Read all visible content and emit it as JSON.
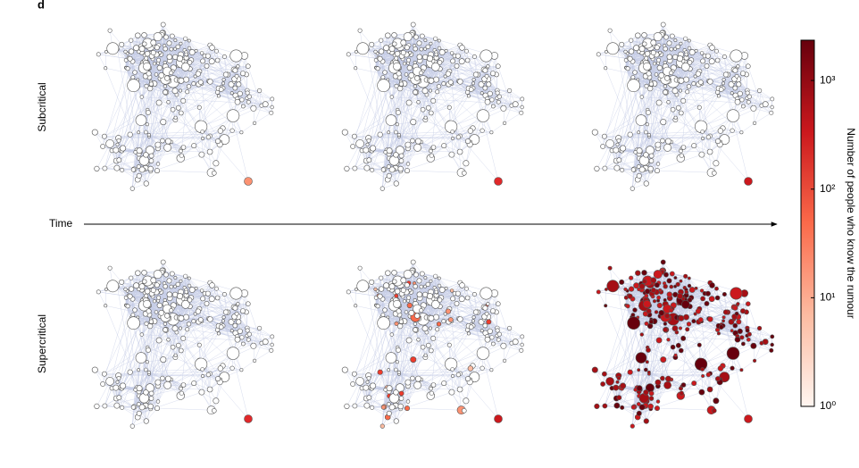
{
  "panel_label": "d",
  "row_labels": [
    "Subcritical",
    "Supercritical"
  ],
  "time_label": "Time",
  "chart_data": {
    "type": "colorbar",
    "label": "Number of people who know the rumour",
    "log_scale": true,
    "ylim": [
      1,
      2350
    ],
    "yticks": [
      {
        "value": 1,
        "label": "10⁰"
      },
      {
        "value": 10,
        "label": "10¹"
      },
      {
        "value": 100,
        "label": "10²"
      },
      {
        "value": 1000,
        "label": "10³"
      }
    ],
    "colors": [
      "#fff5f0",
      "#fcbba1",
      "#fb6a4a",
      "#cb181d",
      "#67000d"
    ]
  }
}
